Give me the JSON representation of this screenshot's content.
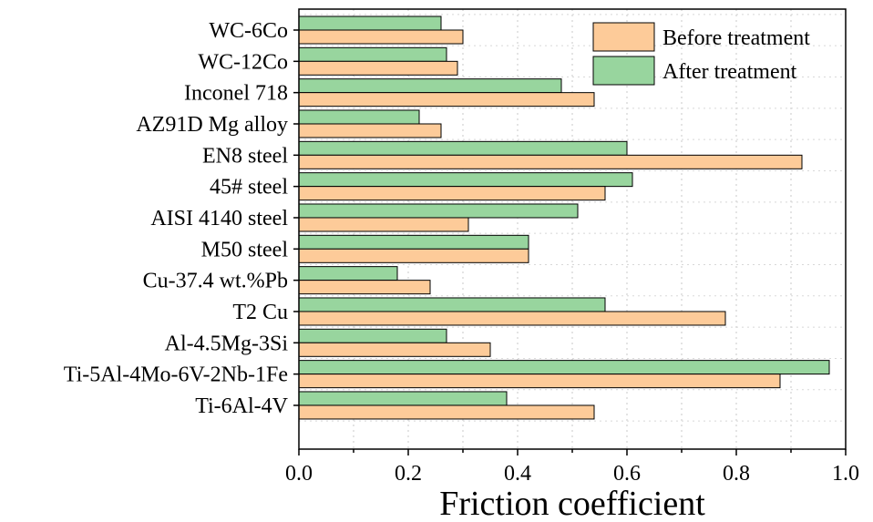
{
  "chart_data": {
    "type": "bar",
    "orientation": "horizontal",
    "title": "",
    "xlabel": "Friction coefficient",
    "ylabel": "",
    "xlim": [
      0.0,
      1.0
    ],
    "xticks": [
      "0.0",
      "0.2",
      "0.4",
      "0.6",
      "0.8",
      "1.0"
    ],
    "xtick_values": [
      0.0,
      0.2,
      0.4,
      0.6,
      0.8,
      1.0
    ],
    "grid": "vertical dashed",
    "legend_position": "top-right",
    "categories": [
      "WC-6Co",
      "WC-12Co",
      "Inconel 718",
      "AZ91D Mg alloy",
      "EN8 steel",
      "45# steel",
      "AISI 4140 steel",
      "M50 steel",
      "Cu-37.4 wt.%Pb",
      "T2 Cu",
      "Al-4.5Mg-3Si",
      "Ti-5Al-4Mo-6V-2Nb-1Fe",
      "Ti-6Al-4V"
    ],
    "series": [
      {
        "name": "Before treatment",
        "color": "#FDCB99",
        "values": [
          0.3,
          0.29,
          0.54,
          0.26,
          0.92,
          0.56,
          0.31,
          0.42,
          0.24,
          0.78,
          0.35,
          0.88,
          0.54
        ]
      },
      {
        "name": "After treatment",
        "color": "#98D59E",
        "values": [
          0.26,
          0.27,
          0.48,
          0.22,
          0.6,
          0.61,
          0.51,
          0.42,
          0.18,
          0.56,
          0.27,
          0.97,
          0.38
        ]
      }
    ]
  }
}
